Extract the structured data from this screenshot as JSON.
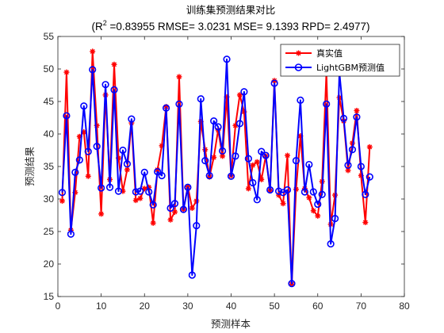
{
  "chart_data": {
    "type": "line",
    "title": "训练集预测结果对比",
    "subtitle": {
      "prefix": "(R",
      "sup": "2",
      "rest": " =0.83955 RMSE= 3.0231 MSE= 9.1393 RPD= 2.4977)"
    },
    "xlabel": "预测样本",
    "ylabel": "预测结果",
    "xlim": [
      0,
      80
    ],
    "ylim": [
      15,
      55
    ],
    "xticks": [
      0,
      10,
      20,
      30,
      40,
      50,
      60,
      70,
      80
    ],
    "yticks": [
      15,
      20,
      25,
      30,
      35,
      40,
      45,
      50,
      55
    ],
    "grid": false,
    "legend_position": "top-right",
    "x": [
      1,
      2,
      3,
      4,
      5,
      6,
      7,
      8,
      9,
      10,
      11,
      12,
      13,
      14,
      15,
      16,
      17,
      18,
      19,
      20,
      21,
      22,
      23,
      24,
      25,
      26,
      27,
      28,
      29,
      30,
      31,
      32,
      33,
      34,
      35,
      36,
      37,
      38,
      39,
      40,
      41,
      42,
      43,
      44,
      45,
      46,
      47,
      48,
      49,
      50,
      51,
      52,
      53,
      54,
      55,
      56,
      57,
      58,
      59,
      60,
      61,
      62,
      63,
      64,
      65,
      66,
      67,
      68,
      69,
      70,
      71,
      72
    ],
    "series": [
      {
        "name": "真实值",
        "color": "#ff0000",
        "marker": "asterisk",
        "values": [
          29.7,
          49.5,
          25.2,
          31.0,
          39.6,
          40.3,
          33.5,
          52.7,
          41.3,
          27.7,
          46.0,
          33.0,
          50.7,
          36.3,
          31.2,
          34.5,
          41.7,
          29.8,
          30.1,
          31.6,
          31.8,
          26.3,
          34.5,
          38.2,
          44.2,
          26.8,
          28.0,
          48.8,
          28.4,
          31.9,
          28.6,
          29.7,
          41.9,
          37.6,
          33.4,
          36.4,
          40.6,
          36.6,
          45.7,
          33.6,
          41.3,
          46.0,
          43.4,
          31.6,
          35.2,
          35.7,
          33.0,
          36.6,
          31.3,
          48.2,
          30.6,
          29.3,
          36.7,
          16.9,
          31.5,
          39.7,
          31.6,
          30.2,
          28.2,
          27.4,
          32.7,
          49.5,
          26.1,
          30.6,
          45.6,
          42.0,
          34.4,
          38.6,
          43.6,
          33.6,
          26.4,
          38.0
        ]
      },
      {
        "name": "LightGBM预测值",
        "color": "#0000ff",
        "marker": "circle",
        "values": [
          31.0,
          42.8,
          24.6,
          34.1,
          36.0,
          44.3,
          37.3,
          49.9,
          38.1,
          31.7,
          47.6,
          31.8,
          46.8,
          31.2,
          37.5,
          35.4,
          42.3,
          31.1,
          31.2,
          34.1,
          31.1,
          29.1,
          34.2,
          33.6,
          44.0,
          28.6,
          29.3,
          44.6,
          28.4,
          31.8,
          18.3,
          25.9,
          45.4,
          35.9,
          33.6,
          42.0,
          41.1,
          37.4,
          51.5,
          33.5,
          36.6,
          41.6,
          46.5,
          36.2,
          32.5,
          29.9,
          37.3,
          36.7,
          31.4,
          47.8,
          31.2,
          31.0,
          31.4,
          17.0,
          35.9,
          45.2,
          31.1,
          35.3,
          31.1,
          29.2,
          30.7,
          44.6,
          23.1,
          27.0,
          49.5,
          42.4,
          35.2,
          37.6,
          42.6,
          35.0,
          30.7,
          33.4
        ]
      }
    ]
  }
}
